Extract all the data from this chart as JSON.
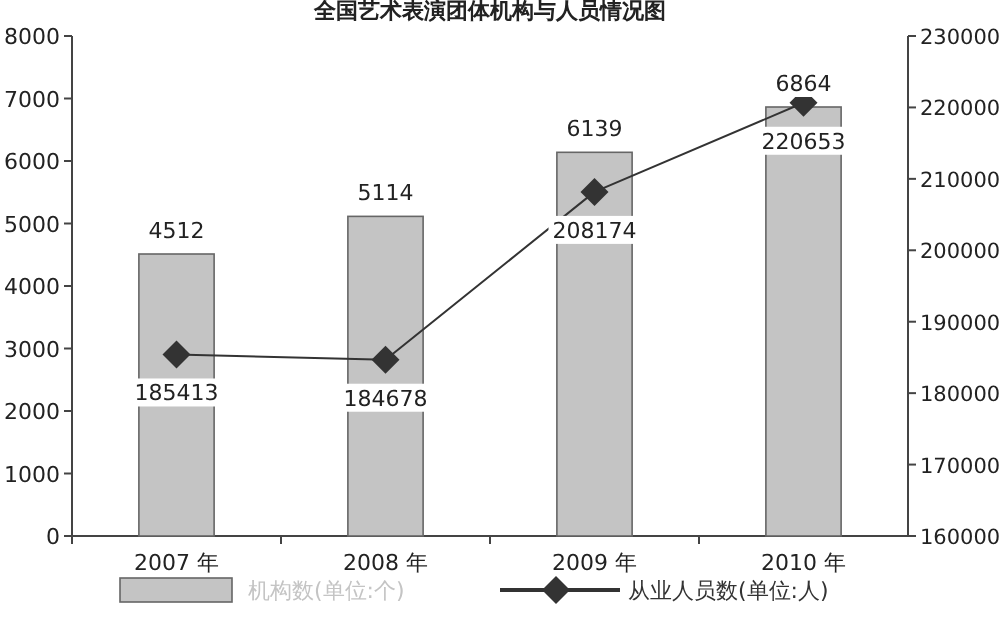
{
  "chart_data": {
    "type": "bar",
    "title": "全国艺术表演团体机构与人员情况图",
    "categories": [
      "2007 年",
      "2008 年",
      "2009 年",
      "2010 年"
    ],
    "series": [
      {
        "name": "机构数(单位:个)",
        "color": "#c4c4c4",
        "values": [
          4512,
          5114,
          6139,
          6864
        ]
      },
      {
        "name": "从业人员数(单位:人)",
        "type": "line",
        "axis": "y2",
        "color": "#333333",
        "marker": "diamond",
        "values": [
          185413,
          184678,
          208174,
          220653
        ]
      }
    ],
    "ylim": [
      0,
      8000
    ],
    "yticks": [
      0,
      1000,
      2000,
      3000,
      4000,
      5000,
      6000,
      7000,
      8000
    ],
    "y2lim": [
      160000,
      230000
    ],
    "y2ticks": [
      160000,
      170000,
      180000,
      190000,
      200000,
      210000,
      220000,
      230000
    ],
    "data_labels": true,
    "legend": "bottom",
    "grid": false
  }
}
